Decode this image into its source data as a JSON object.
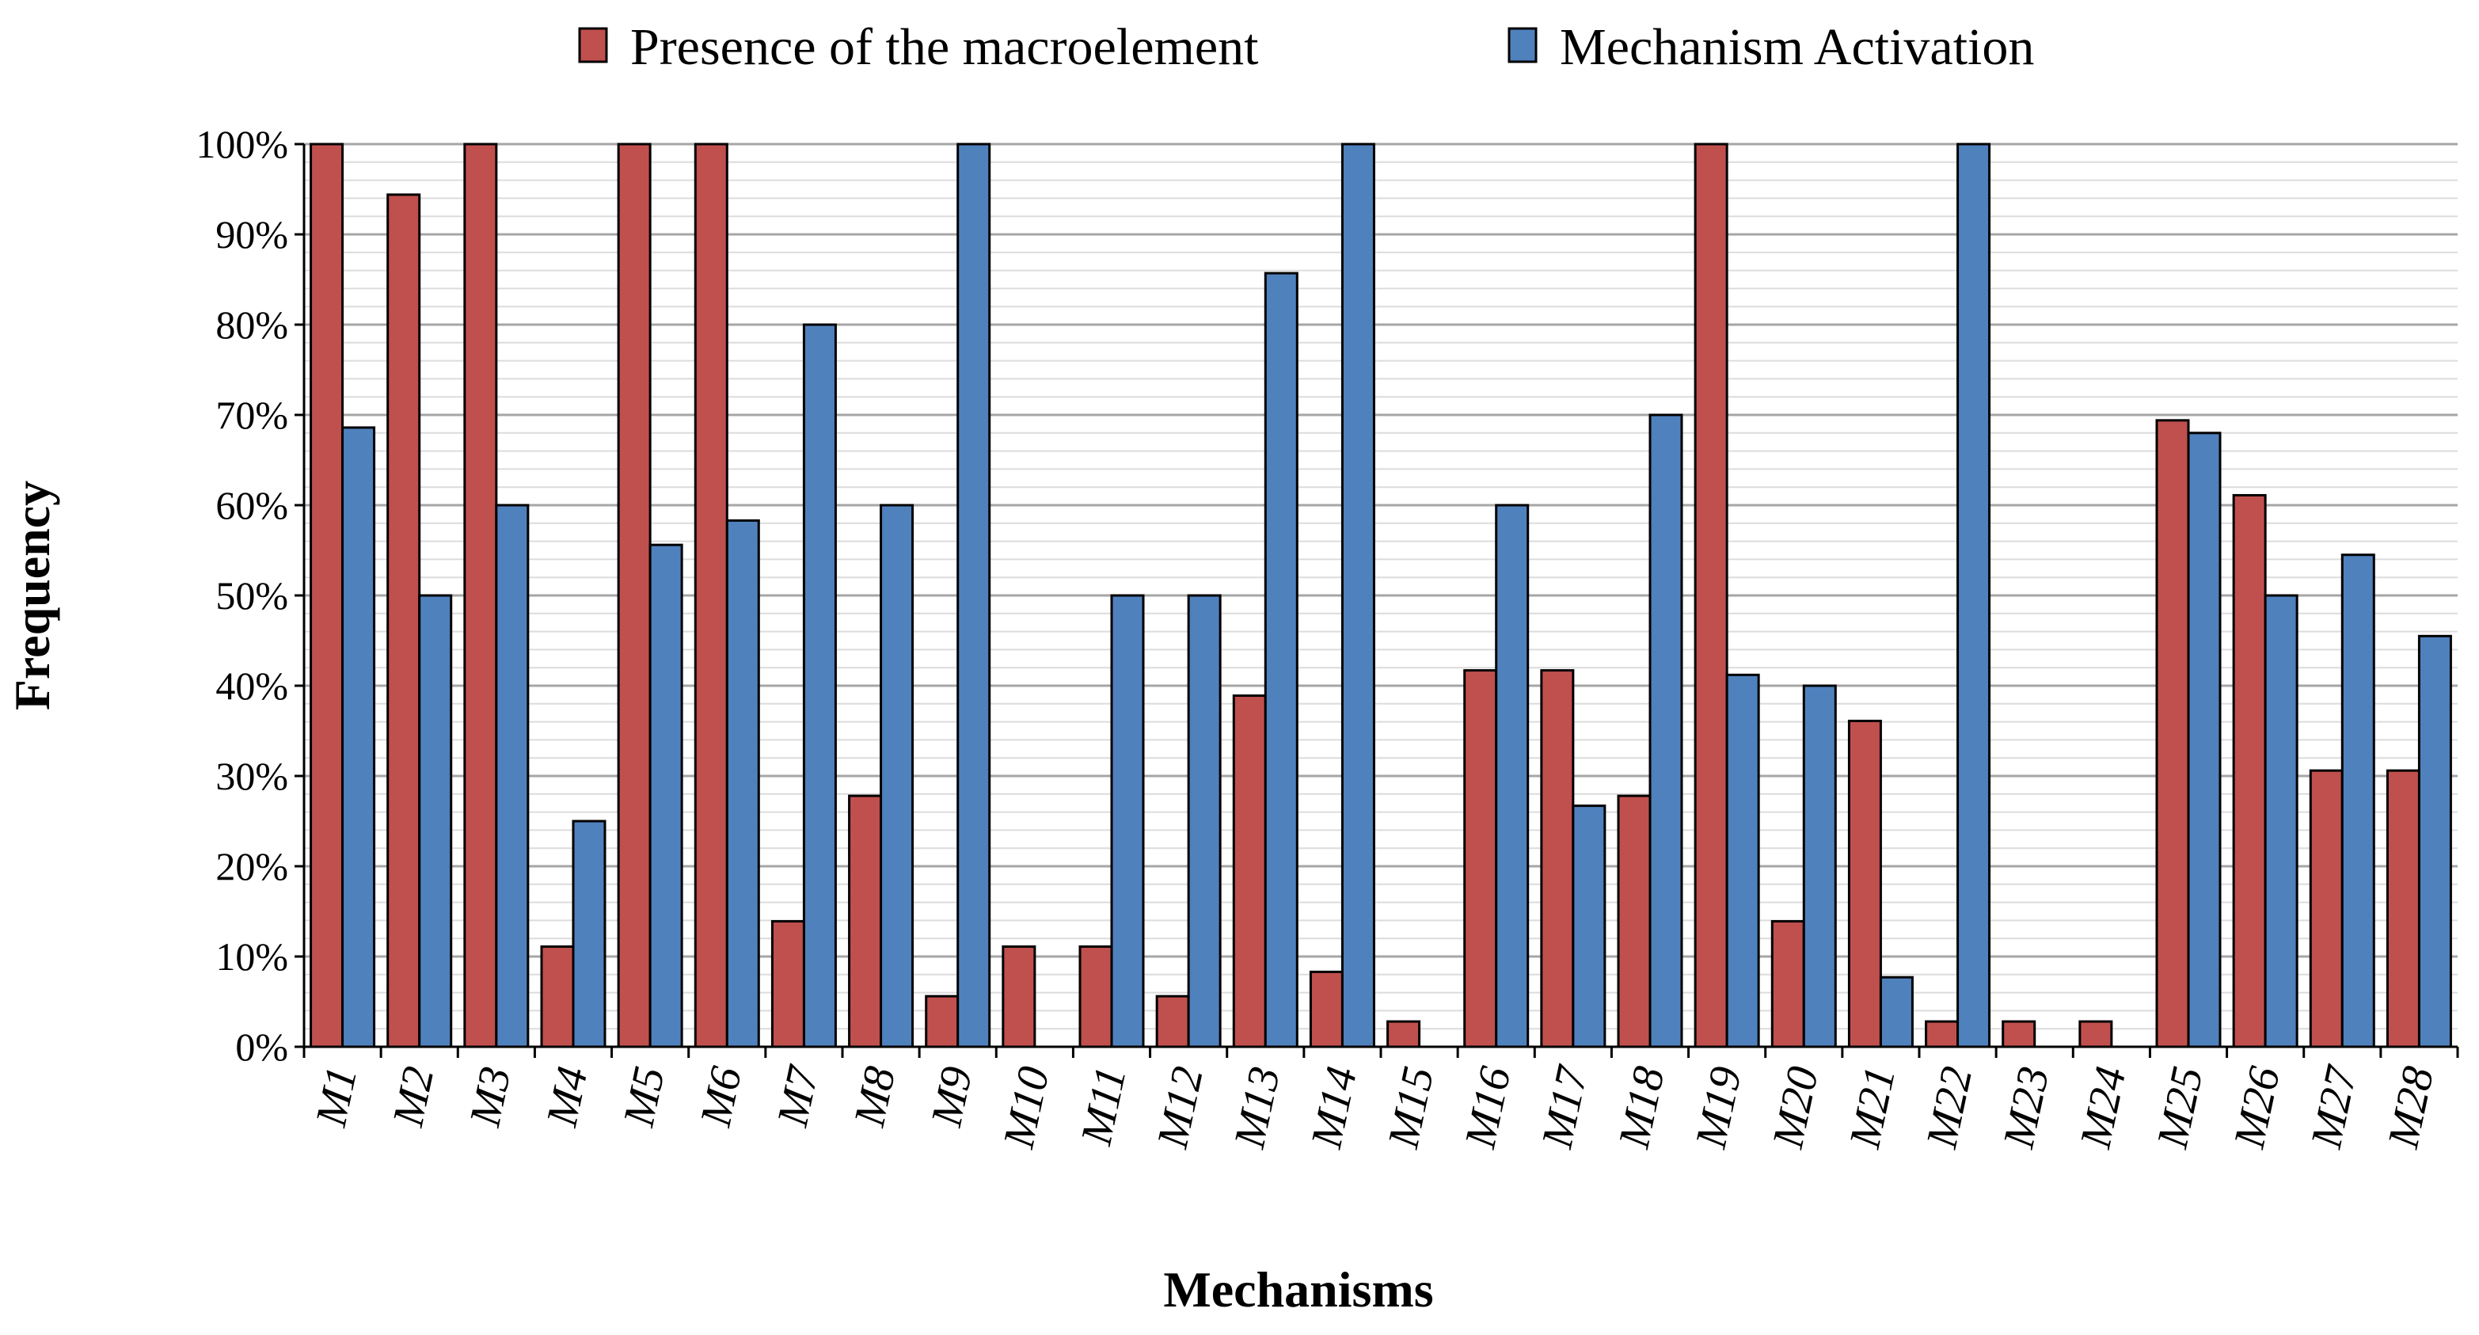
{
  "chart_data": {
    "type": "bar",
    "title": "",
    "xlabel": "Mechanisms",
    "ylabel": "Frequency",
    "ylim": [
      0,
      100
    ],
    "yticks": [
      "0%",
      "10%",
      "20%",
      "30%",
      "40%",
      "50%",
      "60%",
      "70%",
      "80%",
      "90%",
      "100%"
    ],
    "legend_position": "top-center",
    "grid": true,
    "categories": [
      "M1",
      "M2",
      "M3",
      "M4",
      "M5",
      "M6",
      "M7",
      "M8",
      "M9",
      "M10",
      "M11",
      "M12",
      "M13",
      "M14",
      "M15",
      "M16",
      "M17",
      "M18",
      "M19",
      "M20",
      "M21",
      "M22",
      "M23",
      "M24",
      "M25",
      "M26",
      "M27",
      "M28"
    ],
    "series": [
      {
        "name": "Presence of the macroelement",
        "color": "#c0504d",
        "values": [
          100,
          94.4,
          100,
          11.1,
          100,
          100,
          13.9,
          27.8,
          5.6,
          11.1,
          11.1,
          5.6,
          38.9,
          8.3,
          2.8,
          41.7,
          41.7,
          27.8,
          100,
          13.9,
          36.1,
          2.8,
          2.8,
          2.8,
          69.4,
          61.1,
          30.6,
          30.6
        ]
      },
      {
        "name": "Mechanism Activation",
        "color": "#4f81bd",
        "values": [
          68.6,
          50,
          60,
          25,
          55.6,
          58.3,
          80,
          60,
          100,
          0,
          50,
          50,
          85.7,
          100,
          0,
          60,
          26.7,
          70,
          41.2,
          40,
          7.7,
          100,
          0,
          0,
          68,
          50,
          54.5,
          45.5
        ]
      }
    ]
  }
}
